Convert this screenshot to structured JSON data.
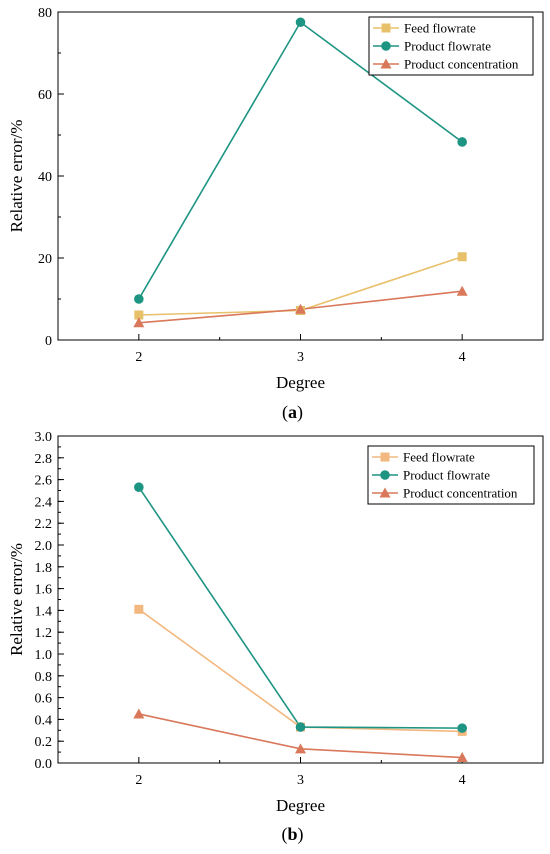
{
  "chart_data": [
    {
      "type": "line",
      "id": "a",
      "caption": {
        "open": "(",
        "letter": "a",
        "close": ")"
      },
      "xlabel": "Degree",
      "ylabel": "Relative error/%",
      "categories": [
        "2",
        "3",
        "4"
      ],
      "x": [
        2,
        3,
        4
      ],
      "xlim": [
        1.5,
        4.5
      ],
      "ylim": [
        0,
        80
      ],
      "yticks": [
        "0",
        "20",
        "40",
        "60",
        "80"
      ],
      "yticks_val": [
        0,
        20,
        40,
        60,
        80
      ],
      "minor_step": 10,
      "legend_position": "top-right",
      "series": [
        {
          "name": "Feed flowrate",
          "marker": "square",
          "color": "#E8C06A",
          "values": [
            6.1,
            7.2,
            20.3
          ]
        },
        {
          "name": "Product flowrate",
          "marker": "circle",
          "color": "#1E9483",
          "values": [
            10.0,
            77.5,
            48.3
          ]
        },
        {
          "name": "Product concentration",
          "marker": "triangle",
          "color": "#D9785A",
          "values": [
            4.2,
            7.5,
            11.9
          ]
        }
      ]
    },
    {
      "type": "line",
      "id": "b",
      "caption": {
        "open": "(",
        "letter": "b",
        "close": ")"
      },
      "xlabel": "Degree",
      "ylabel": "Relative error/%",
      "categories": [
        "2",
        "3",
        "4"
      ],
      "x": [
        2,
        3,
        4
      ],
      "xlim": [
        1.5,
        4.5
      ],
      "ylim": [
        0,
        3.0
      ],
      "yticks": [
        "0.0",
        "0.2",
        "0.4",
        "0.6",
        "0.8",
        "1.0",
        "1.2",
        "1.4",
        "1.6",
        "1.8",
        "2.0",
        "2.2",
        "2.4",
        "2.6",
        "2.8",
        "3.0"
      ],
      "yticks_val": [
        0,
        0.2,
        0.4,
        0.6,
        0.8,
        1.0,
        1.2,
        1.4,
        1.6,
        1.8,
        2.0,
        2.2,
        2.4,
        2.6,
        2.8,
        3.0
      ],
      "minor_step": 0.1,
      "legend_position": "top-right",
      "series": [
        {
          "name": "Feed flowrate",
          "marker": "square",
          "color": "#F2B880",
          "values": [
            1.41,
            0.33,
            0.29
          ]
        },
        {
          "name": "Product flowrate",
          "marker": "circle",
          "color": "#1E9483",
          "values": [
            2.53,
            0.33,
            0.32
          ]
        },
        {
          "name": "Product concentration",
          "marker": "triangle",
          "color": "#D9785A",
          "values": [
            0.45,
            0.13,
            0.05
          ]
        }
      ]
    }
  ]
}
